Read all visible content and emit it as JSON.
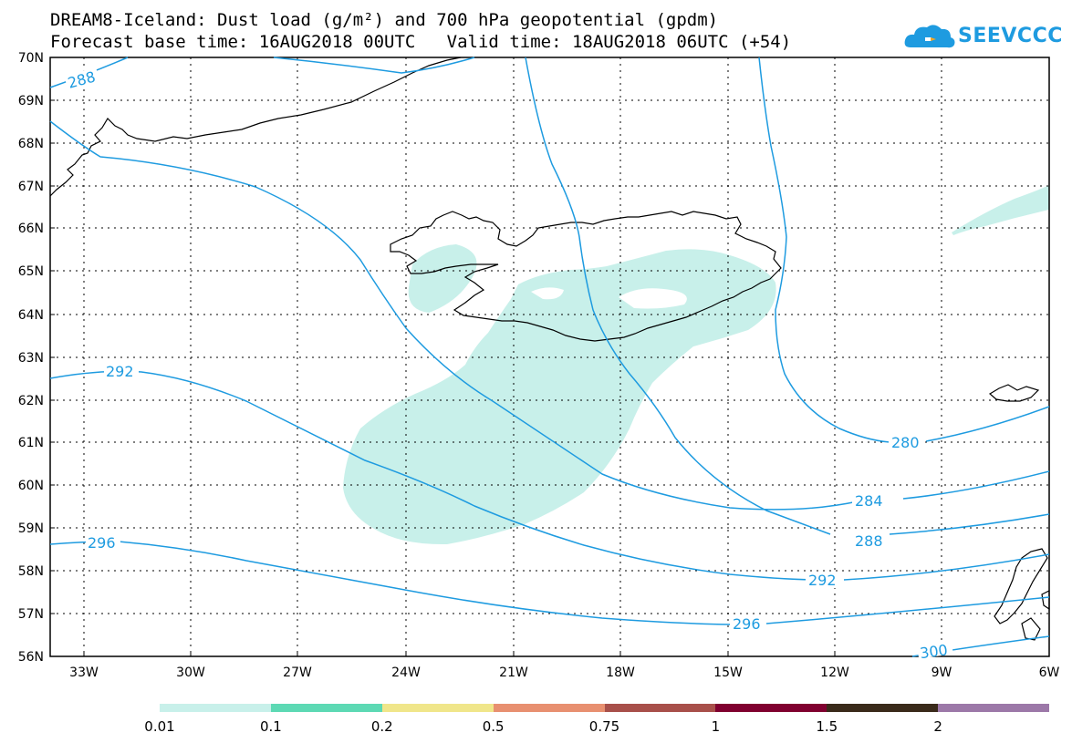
{
  "header": {
    "title_line1": "DREAM8-Iceland: Dust load (g/m²) and 700 hPa geopotential (gpdm)",
    "title_line2": "Forecast base time: 16AUG2018 00UTC   Valid time: 18AUG2018 06UTC (+54)"
  },
  "logo": {
    "text": "SEEVCCC",
    "icon": "cloud-icon",
    "color": "#1e9be0"
  },
  "axes": {
    "lat_labels": [
      "70N",
      "69N",
      "68N",
      "67N",
      "66N",
      "65N",
      "64N",
      "63N",
      "62N",
      "61N",
      "60N",
      "59N",
      "58N",
      "57N",
      "56N"
    ],
    "lon_labels": [
      "33W",
      "30W",
      "27W",
      "24W",
      "21W",
      "18W",
      "15W",
      "12W",
      "9W",
      "6W"
    ]
  },
  "contours": {
    "color": "#1e9be0",
    "labels": [
      {
        "text": "288",
        "lon": -33.5,
        "lat": 69.5
      },
      {
        "text": "292",
        "lon": -31.7,
        "lat": 62.7
      },
      {
        "text": "296",
        "lon": -32.6,
        "lat": 58.7
      },
      {
        "text": "280",
        "lon": -10.8,
        "lat": 61.0
      },
      {
        "text": "284",
        "lon": -11.8,
        "lat": 59.7
      },
      {
        "text": "288",
        "lon": -11.8,
        "lat": 58.7
      },
      {
        "text": "292",
        "lon": -13.1,
        "lat": 57.8
      },
      {
        "text": "296",
        "lon": -15.3,
        "lat": 56.8
      },
      {
        "text": "300",
        "lon": -9.8,
        "lat": 56.1
      }
    ]
  },
  "dust_fill_color": "#c8f0ea",
  "colorbar": {
    "colors": [
      "#c8f0ea",
      "#5dd9b4",
      "#f0e68a",
      "#e89070",
      "#a8504a",
      "#800030",
      "#3a2a1a",
      "#9c78a8"
    ],
    "labels": [
      "0.01",
      "0.1",
      "0.2",
      "0.5",
      "0.75",
      "1",
      "1.5",
      "2"
    ]
  }
}
